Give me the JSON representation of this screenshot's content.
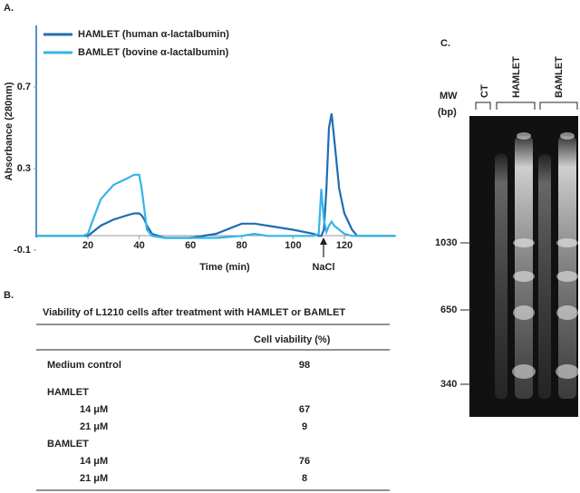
{
  "panel_labels": {
    "a": "A.",
    "b": "B.",
    "c": "C."
  },
  "chart_data": {
    "type": "line",
    "ylabel": "Absorbance (280nm)",
    "xlabel": "Time (min)",
    "annotation": "NaCl",
    "x": [
      0,
      18,
      20,
      22,
      25,
      30,
      35,
      38,
      40,
      41,
      42,
      43,
      45,
      50,
      60,
      70,
      80,
      85,
      90,
      100,
      108,
      110,
      111,
      112,
      113,
      114,
      115,
      116,
      118,
      120,
      123,
      125,
      140
    ],
    "series": [
      {
        "name": "HAMLET (human α-lactalbumin)",
        "color": "#1f6db3",
        "values": [
          -0.03,
          -0.03,
          -0.03,
          -0.01,
          0.02,
          0.05,
          0.07,
          0.08,
          0.08,
          0.07,
          0.05,
          0.02,
          -0.02,
          -0.04,
          -0.04,
          -0.02,
          0.03,
          0.03,
          0.02,
          0.0,
          -0.02,
          -0.03,
          -0.03,
          0.0,
          0.2,
          0.5,
          0.57,
          0.45,
          0.2,
          0.08,
          0.0,
          -0.03,
          -0.03
        ]
      },
      {
        "name": "BAMLET (bovine α-lactalbumin)",
        "color": "#35b4e6",
        "values": [
          -0.03,
          -0.03,
          -0.02,
          0.05,
          0.15,
          0.22,
          0.25,
          0.27,
          0.27,
          0.2,
          0.1,
          0.0,
          -0.03,
          -0.04,
          -0.04,
          -0.04,
          -0.03,
          -0.02,
          -0.03,
          -0.03,
          -0.03,
          -0.02,
          0.2,
          0.05,
          -0.01,
          0.02,
          0.04,
          0.02,
          0.0,
          -0.02,
          -0.03,
          -0.03,
          -0.03
        ]
      }
    ],
    "xlim": [
      0,
      140
    ],
    "ylim": [
      -0.1,
      0.9
    ],
    "xticks": [
      20,
      40,
      60,
      80,
      100,
      120
    ],
    "yticks": [
      -0.1,
      0.3,
      0.7
    ]
  },
  "table": {
    "title": "Viability of L1210 cells after treatment with HAMLET or BAMLET",
    "header": "Cell viability (%)",
    "control": {
      "label": "Medium control",
      "value": 98
    },
    "groups": [
      {
        "name": "HAMLET",
        "rows": [
          {
            "dose": "14 μM",
            "value": 67
          },
          {
            "dose": "21 μM",
            "value": 9
          }
        ]
      },
      {
        "name": "BAMLET",
        "rows": [
          {
            "dose": "14 μM",
            "value": 76
          },
          {
            "dose": "21 μM",
            "value": 8
          }
        ]
      }
    ]
  },
  "gel": {
    "mw": "MW",
    "unit": "(bp)",
    "lanes": [
      "CT",
      "HAMLET",
      "BAMLET"
    ],
    "markers": [
      1030,
      650,
      340
    ]
  }
}
